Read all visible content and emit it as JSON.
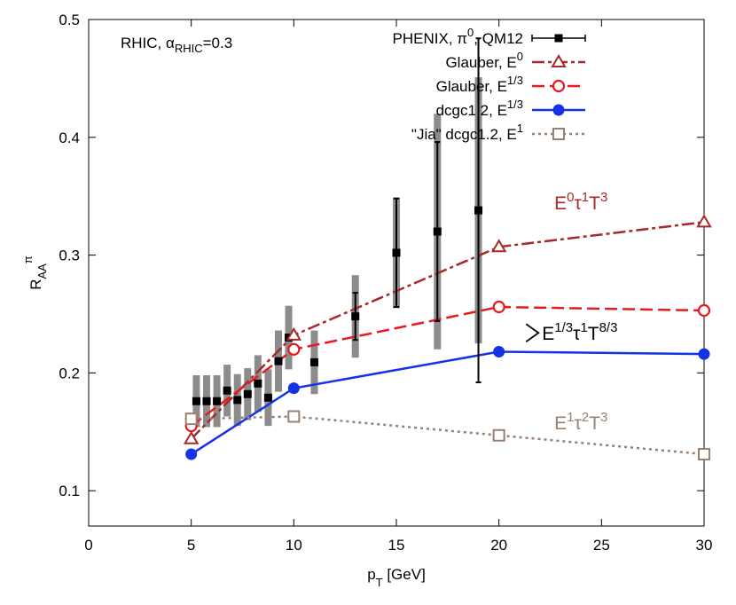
{
  "chart_data": {
    "type": "line",
    "xlabel": "p",
    "xlabel_sub": "T",
    "xlabel_unit": " [GeV]",
    "ylabel": "R",
    "ylabel_sub": "AA",
    "ylabel_sup": "π",
    "xlim": [
      0,
      30
    ],
    "ylim": [
      0.07,
      0.5
    ],
    "xticks": [
      0,
      5,
      10,
      15,
      20,
      25,
      30
    ],
    "yticks": [
      0.1,
      0.2,
      0.3,
      0.4,
      0.5
    ],
    "ytick_labels": [
      "0.1",
      "0.2",
      "0.3",
      "0.4",
      "0.5"
    ],
    "grid": false,
    "legend_position": "top-right",
    "corner_label": {
      "prefix": "RHIC, ",
      "alpha": "α",
      "alpha_sub": "RHIC",
      "suffix": "=0.3"
    },
    "series": [
      {
        "name": "PHENIX, π0, QM12",
        "legend": {
          "base": "PHENIX, π",
          "sup": "0",
          "suffix": ", QM12"
        },
        "kind": "data",
        "color": "#000000",
        "marker": "filled-square",
        "points": [
          {
            "x": 5.25,
            "y": 0.176,
            "stat": 0.0,
            "sys": 0.022
          },
          {
            "x": 5.75,
            "y": 0.176,
            "stat": 0.0,
            "sys": 0.022
          },
          {
            "x": 6.25,
            "y": 0.176,
            "stat": 0.0,
            "sys": 0.022
          },
          {
            "x": 6.75,
            "y": 0.185,
            "stat": 0.0,
            "sys": 0.022
          },
          {
            "x": 7.25,
            "y": 0.177,
            "stat": 0.0,
            "sys": 0.022
          },
          {
            "x": 7.75,
            "y": 0.182,
            "stat": 0.0,
            "sys": 0.022
          },
          {
            "x": 8.25,
            "y": 0.191,
            "stat": 0.0,
            "sys": 0.024
          },
          {
            "x": 8.75,
            "y": 0.179,
            "stat": 0.0,
            "sys": 0.024
          },
          {
            "x": 9.25,
            "y": 0.21,
            "stat": 0.0,
            "sys": 0.026
          },
          {
            "x": 9.75,
            "y": 0.23,
            "stat": 0.0,
            "sys": 0.027
          },
          {
            "x": 11.0,
            "y": 0.209,
            "stat": 0.0,
            "sys": 0.027
          },
          {
            "x": 13.0,
            "y": 0.248,
            "stat": 0.02,
            "sys": 0.035
          },
          {
            "x": 15.0,
            "y": 0.302,
            "stat": 0.046,
            "sys": 0.047
          },
          {
            "x": 17.0,
            "y": 0.32,
            "stat": 0.076,
            "sys": 0.1
          },
          {
            "x": 19.0,
            "y": 0.338,
            "stat": 0.146,
            "sys": 0.113
          }
        ]
      },
      {
        "name": "Glauber, E0",
        "legend": {
          "base": "Glauber, E",
          "sup": "0"
        },
        "kind": "model",
        "color": "#a52a2a",
        "dash": "14 4 4 4",
        "marker": "open-triangle",
        "x": [
          5,
          10,
          20,
          30
        ],
        "y": [
          0.144,
          0.232,
          0.307,
          0.328
        ]
      },
      {
        "name": "Glauber, E1/3",
        "legend": {
          "base": "Glauber, E",
          "sup": "1/3"
        },
        "kind": "model",
        "color": "#e8191e",
        "dash": "14 6",
        "marker": "open-circle",
        "x": [
          5,
          10,
          20,
          30
        ],
        "y": [
          0.155,
          0.22,
          0.256,
          0.253
        ]
      },
      {
        "name": "dcgc1.2, E1/3",
        "legend": {
          "base": "dcgc1.2, E",
          "sup": "1/3"
        },
        "kind": "model",
        "color": "#1432e6",
        "dash": "",
        "marker": "filled-circle",
        "x": [
          5,
          10,
          20,
          30
        ],
        "y": [
          0.131,
          0.187,
          0.218,
          0.216
        ]
      },
      {
        "name": "\"Jia\" dcgc1.2, E1",
        "legend": {
          "base": "\"Jia\" dcgc1.2, E",
          "sup": "1"
        },
        "kind": "model",
        "color": "#9a8070",
        "dash": "3 4",
        "marker": "open-square",
        "x": [
          5,
          10,
          20,
          30
        ],
        "y": [
          0.161,
          0.163,
          0.147,
          0.131
        ]
      }
    ],
    "annotations": [
      {
        "id": "e0",
        "color": "#a52a2a",
        "anchor_x": 22.7,
        "anchor_y": 0.345,
        "parts": [
          [
            "E",
            ""
          ],
          [
            "0",
            "sup"
          ],
          [
            "τ",
            ""
          ],
          [
            "1",
            "sup"
          ],
          [
            "T",
            ""
          ],
          [
            "3",
            "sup"
          ]
        ]
      },
      {
        "id": "e13",
        "color": "#000000",
        "anchor_x": 22.1,
        "anchor_y": 0.234,
        "bracket": true,
        "parts": [
          [
            "E",
            ""
          ],
          [
            "1/3",
            "sup"
          ],
          [
            "τ",
            ""
          ],
          [
            "1",
            "sup"
          ],
          [
            "T",
            ""
          ],
          [
            "8/3",
            "sup"
          ]
        ]
      },
      {
        "id": "e1",
        "color": "#9a8070",
        "anchor_x": 22.7,
        "anchor_y": 0.158,
        "parts": [
          [
            "E",
            ""
          ],
          [
            "1",
            "sup"
          ],
          [
            "τ",
            ""
          ],
          [
            "2",
            "sup"
          ],
          [
            "T",
            ""
          ],
          [
            "3",
            "sup"
          ]
        ]
      }
    ]
  }
}
